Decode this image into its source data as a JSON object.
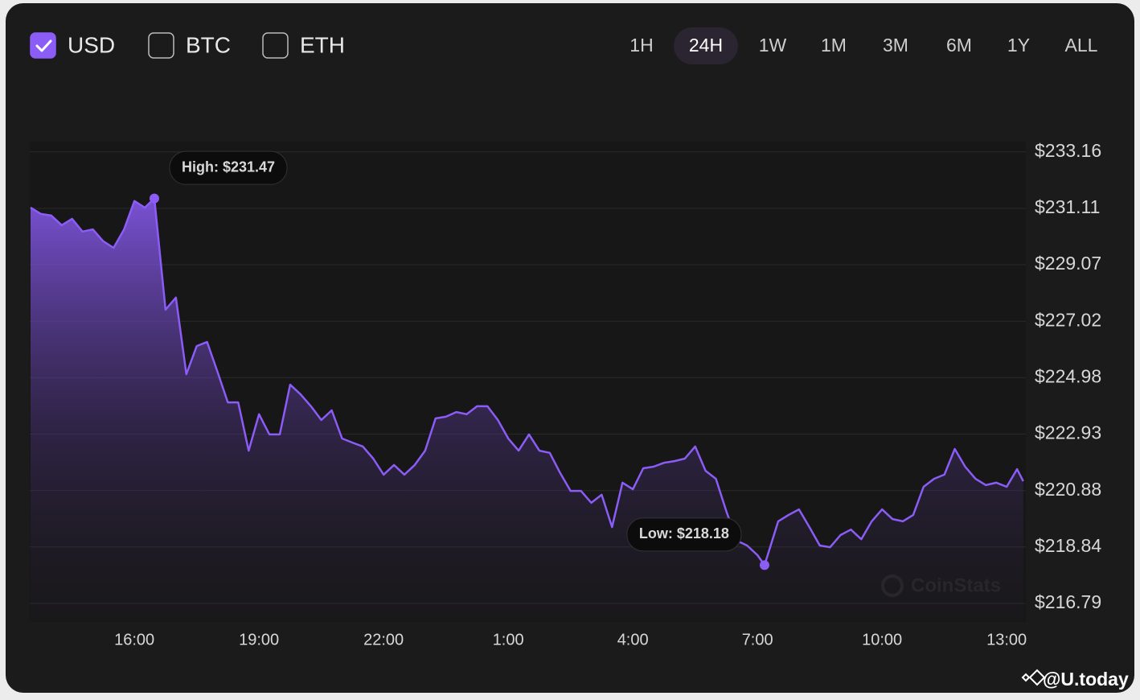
{
  "currency_toggles": [
    {
      "label": "USD",
      "checked": true
    },
    {
      "label": "BTC",
      "checked": false
    },
    {
      "label": "ETH",
      "checked": false
    }
  ],
  "ranges": [
    {
      "label": "1H",
      "active": false
    },
    {
      "label": "24H",
      "active": true
    },
    {
      "label": "1W",
      "active": false
    },
    {
      "label": "1M",
      "active": false
    },
    {
      "label": "3M",
      "active": false
    },
    {
      "label": "6M",
      "active": false
    },
    {
      "label": "1Y",
      "active": false
    },
    {
      "label": "ALL",
      "active": false
    }
  ],
  "watermark": "CoinStats",
  "footer": "@U.today",
  "chart_data": {
    "type": "area",
    "color": "#8b5cf6",
    "x": [
      13.5,
      13.75,
      14,
      14.25,
      14.5,
      14.75,
      15,
      15.25,
      15.5,
      15.75,
      16,
      16.25,
      16.48,
      16.75,
      17,
      17.25,
      17.5,
      17.75,
      18,
      18.25,
      18.5,
      18.75,
      19,
      19.25,
      19.5,
      19.75,
      20,
      20.25,
      20.5,
      20.75,
      21,
      21.25,
      21.5,
      21.75,
      22,
      22.25,
      22.5,
      22.75,
      23,
      23.25,
      23.5,
      23.75,
      24,
      24.25,
      24.5,
      24.75,
      25,
      25.25,
      25.5,
      25.75,
      26,
      26.25,
      26.5,
      26.75,
      27,
      27.25,
      27.5,
      27.75,
      28,
      28.25,
      28.5,
      28.75,
      29,
      29.25,
      29.5,
      29.75,
      30,
      30.25,
      30.5,
      30.75,
      31,
      31.17,
      31.5,
      31.75,
      32,
      32.25,
      32.5,
      32.75,
      33,
      33.25,
      33.5,
      33.75,
      34,
      34.25,
      34.5,
      34.75,
      35,
      35.25,
      35.5,
      35.75,
      36,
      36.25,
      36.5,
      36.75,
      37,
      37.25,
      37.4
    ],
    "values": [
      231.14,
      230.91,
      230.85,
      230.5,
      230.73,
      230.27,
      230.35,
      229.92,
      229.68,
      230.35,
      231.38,
      231.14,
      231.47,
      227.44,
      227.88,
      225.1,
      226.12,
      226.27,
      225.19,
      224.08,
      224.08,
      222.33,
      223.65,
      222.92,
      222.92,
      224.72,
      224.37,
      223.94,
      223.44,
      223.79,
      222.77,
      222.62,
      222.48,
      222.04,
      221.46,
      221.81,
      221.46,
      221.81,
      222.33,
      223.5,
      223.56,
      223.73,
      223.65,
      223.94,
      223.94,
      223.44,
      222.77,
      222.33,
      222.92,
      222.33,
      222.25,
      221.52,
      220.87,
      220.87,
      220.44,
      220.73,
      219.56,
      221.17,
      220.93,
      221.69,
      221.75,
      221.89,
      221.95,
      222.04,
      222.48,
      221.6,
      221.31,
      220.14,
      219.07,
      218.89,
      218.54,
      218.18,
      219.77,
      220.0,
      220.2,
      219.56,
      218.89,
      218.83,
      219.27,
      219.47,
      219.12,
      219.77,
      220.2,
      219.85,
      219.77,
      220.0,
      221.02,
      221.31,
      221.46,
      222.39,
      221.75,
      221.31,
      221.08,
      221.17,
      221.02,
      221.66,
      221.22
    ],
    "xlim": [
      13.5,
      37.5
    ],
    "ylim": [
      216.15,
      233.56
    ],
    "xticks": [
      {
        "value": 16,
        "label": "16:00"
      },
      {
        "value": 19,
        "label": "19:00"
      },
      {
        "value": 22,
        "label": "22:00"
      },
      {
        "value": 25,
        "label": "1:00"
      },
      {
        "value": 28,
        "label": "4:00"
      },
      {
        "value": 31,
        "label": "7:00"
      },
      {
        "value": 34,
        "label": "10:00"
      },
      {
        "value": 37,
        "label": "13:00"
      }
    ],
    "yticks": [
      {
        "value": 216.79,
        "label": "$216.79"
      },
      {
        "value": 218.84,
        "label": "$218.84"
      },
      {
        "value": 220.88,
        "label": "$220.88"
      },
      {
        "value": 222.93,
        "label": "$222.93"
      },
      {
        "value": 224.98,
        "label": "$224.98"
      },
      {
        "value": 227.02,
        "label": "$227.02"
      },
      {
        "value": 229.07,
        "label": "$229.07"
      },
      {
        "value": 231.11,
        "label": "$231.11"
      },
      {
        "value": 233.16,
        "label": "$233.16"
      }
    ],
    "grid": true,
    "annotations": [
      {
        "text": "High: $231.47",
        "x": 16.48,
        "y": 231.47
      },
      {
        "text": "Low: $218.18",
        "x": 31.17,
        "y": 218.18
      }
    ]
  }
}
